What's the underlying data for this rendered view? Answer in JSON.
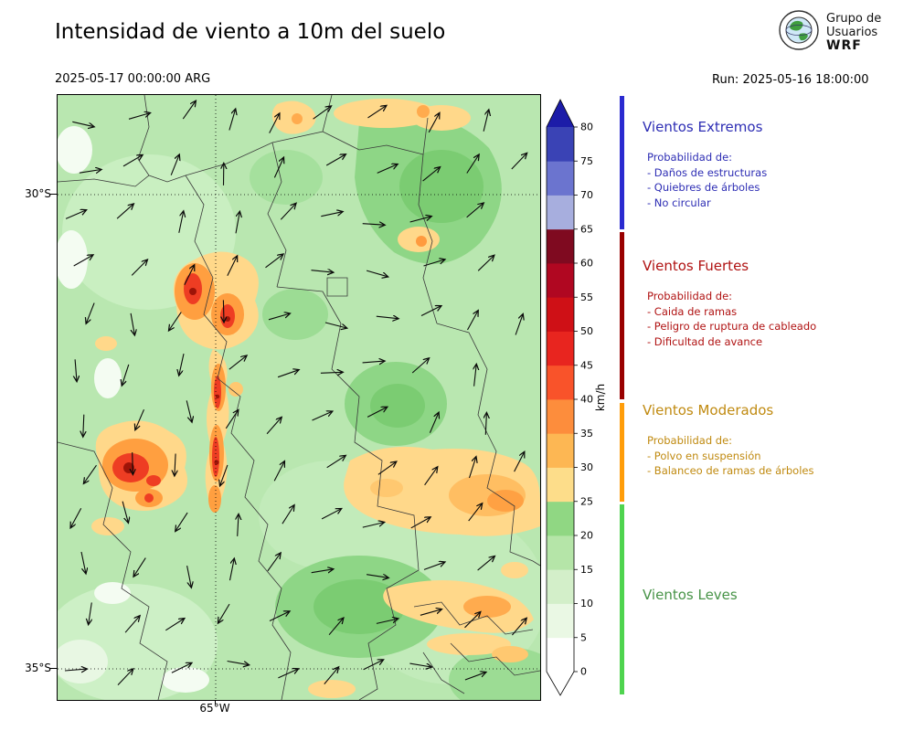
{
  "header": {
    "title": "Intensidad de viento a 10m del suelo",
    "valid_time": "2025-05-17 00:00:00 ARG",
    "run_label": "Run: 2025-05-16 18:00:00",
    "logo": {
      "line1": "Grupo de",
      "line2": "Usuarios",
      "line3": "WRF"
    }
  },
  "map": {
    "lat_ticks": [
      "30°S",
      "35°S"
    ],
    "lon_ticks": [
      "65°W"
    ]
  },
  "colorbar": {
    "label": "km/h",
    "tick_values": [
      "0",
      "5",
      "10",
      "15",
      "20",
      "25",
      "30",
      "35",
      "40",
      "45",
      "50",
      "55",
      "60",
      "65",
      "70",
      "75",
      "80"
    ],
    "segment_colors": [
      "#ffffff",
      "#eaf8e4",
      "#d3efc9",
      "#b5e5a8",
      "#90d783",
      "#fddd8a",
      "#fdb753",
      "#fd8d3c",
      "#f9532a",
      "#e8251f",
      "#cf1016",
      "#b00721",
      "#7f0a20",
      "#a7aede",
      "#6b74cf",
      "#3a43b5"
    ],
    "over_color": "#1c1ca8",
    "under_color": "#ffffff"
  },
  "legend": {
    "sections": [
      {
        "title": "Vientos Extremos",
        "text_color": "#2d2db4",
        "bar_color": "#2a2ad0",
        "lines": [
          "Probabilidad de:",
          "- Daños de estructuras",
          "- Quiebres de árboles",
          "- No circular"
        ]
      },
      {
        "title": "Vientos Fuertes",
        "text_color": "#b01212",
        "bar_color": "#990000",
        "lines": [
          "Probabilidad de:",
          "- Caida de ramas",
          "- Peligro de ruptura de cableado",
          "- Dificultad de avance"
        ]
      },
      {
        "title": "Vientos Moderados",
        "text_color": "#c08a10",
        "bar_color": "#ff9d0a",
        "lines": [
          "Probabilidad de:",
          "- Polvo en suspensión",
          "- Balanceo de ramas de árboles"
        ]
      },
      {
        "title": "Vientos Leves",
        "text_color": "#479347",
        "bar_color": "#4fd44f",
        "lines": []
      }
    ]
  },
  "chart_data": {
    "type": "heatmap",
    "title": "Intensidad de viento a 10m del suelo",
    "valid_time": "2025-05-17 00:00:00 ARG",
    "model_run": "Run: 2025-05-16 18:00:00",
    "variable": "10 m wind speed (filled contours) with wind-direction arrows overlay",
    "units": "km/h",
    "colorbar_label": "km/h",
    "levels_kmh": [
      0,
      5,
      10,
      15,
      20,
      25,
      30,
      35,
      40,
      45,
      50,
      55,
      60,
      65,
      70,
      75,
      80
    ],
    "palette": [
      "#ffffff",
      "#eaf8e4",
      "#d3efc9",
      "#b5e5a8",
      "#90d783",
      "#fddd8a",
      "#fdb753",
      "#fd8d3c",
      "#f9532a",
      "#e8251f",
      "#cf1016",
      "#b00721",
      "#7f0a20",
      "#a7aede",
      "#6b74cf",
      "#3a43b5"
    ],
    "over_color": "#1c1ca8",
    "lat_gridlines": [
      "30°S",
      "35°S"
    ],
    "lon_gridlines": [
      "65°W"
    ],
    "category_bands": [
      {
        "label": "Vientos Leves",
        "range_kmh": [
          0,
          25
        ],
        "color": "#4fd44f"
      },
      {
        "label": "Vientos Moderados",
        "range_kmh": [
          25,
          40
        ],
        "color": "#ff9d0a"
      },
      {
        "label": "Vientos Fuertes",
        "range_kmh": [
          40,
          65
        ],
        "color": "#990000"
      },
      {
        "label": "Vientos Extremos",
        "range_kmh": [
          65,
          80
        ],
        "color": "#2a2ad0"
      }
    ],
    "features": [
      {
        "region": "west-central sierras (two elongated N-S bands near 65°W)",
        "wind_kmh": "35-60, local cores 55-65",
        "appearance": "orange-red cores inside yellow envelope"
      },
      {
        "region": "far-west cluster south of 32°S",
        "wind_kmh": "40-60",
        "appearance": "red core with dark-red center"
      },
      {
        "region": "east-central lowlands and SE corner",
        "wind_kmh": "25-35",
        "appearance": "yellow-orange patches"
      },
      {
        "region": "remainder of domain",
        "wind_kmh": "5-25",
        "appearance": "light to medium green, white pockets below 5"
      }
    ],
    "overlay": {
      "style": "thin black arrows on regular grid",
      "general_flow": "mostly toward NE/E over north and east; southward along western band; variable in south"
    }
  }
}
